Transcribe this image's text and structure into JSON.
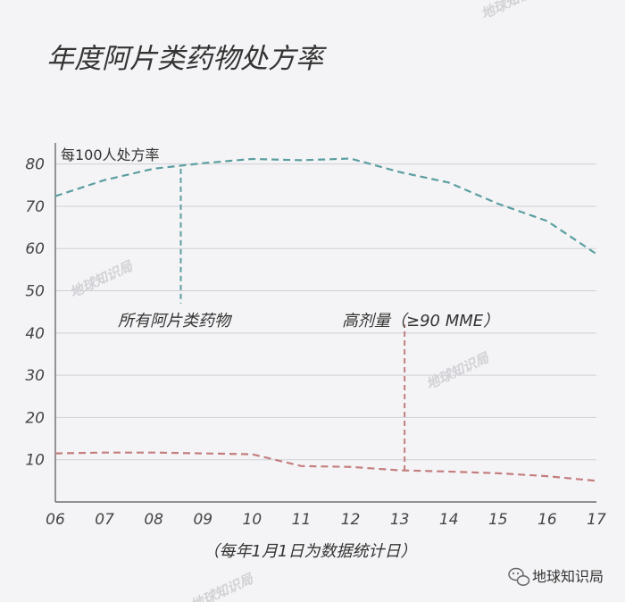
{
  "page": {
    "watermark_text": "地球知识局",
    "footer_text": "地球知识局",
    "footer_icon": "wechat-icon",
    "colors": {
      "background": "#f4f4f6",
      "grid": "#cfcfd6",
      "axis": "#555555"
    }
  },
  "chart_data": {
    "type": "line",
    "title": "年度阿片类药物处方率",
    "ylabel": "每100人处方率",
    "xlabel": "（每年1月1日为数据统计日）",
    "x": [
      "06",
      "07",
      "08",
      "09",
      "10",
      "11",
      "12",
      "13",
      "14",
      "15",
      "16",
      "17"
    ],
    "yticks": [
      10,
      20,
      30,
      40,
      50,
      60,
      70,
      80
    ],
    "ylim": [
      0,
      85
    ],
    "grid": true,
    "series": [
      {
        "name": "所有阿片类药物",
        "color": "#5b9ea0",
        "values": [
          72.4,
          76.2,
          78.9,
          80.2,
          81.2,
          80.9,
          81.3,
          78.1,
          75.6,
          70.6,
          66.5,
          58.7
        ]
      },
      {
        "name": "高剂量（≥90 MME）",
        "color": "#c47e7e",
        "values": [
          11.5,
          11.7,
          11.7,
          11.5,
          11.3,
          8.5,
          8.3,
          7.5,
          7.2,
          6.8,
          6.1,
          5.0
        ]
      }
    ],
    "annotations": [
      {
        "series": 0,
        "label": "所有阿片类药物",
        "x_value": 8.55,
        "from": 78.9,
        "to": 47
      },
      {
        "series": 1,
        "label": "高剂量（≥90 MME）",
        "x_value": 13.1,
        "from": 7.4,
        "to": 42
      }
    ]
  }
}
